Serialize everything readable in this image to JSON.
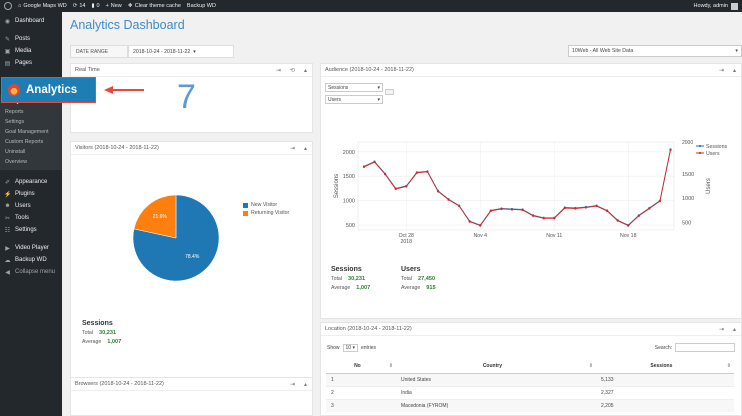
{
  "adminbar": {
    "site_name": "Google Maps WD",
    "updates": "14",
    "comments": "0",
    "new_label": "New",
    "cache_label": "Clear theme cache",
    "backup_label": "Backup WD",
    "howdy": "Howdy, admin"
  },
  "sidebar": {
    "dashboard": "Dashboard",
    "posts": "Posts",
    "media": "Media",
    "pages": "Pages",
    "submenu": [
      "Analytics Dashboard",
      "Reports",
      "Settings",
      "Goal Management",
      "Custom Reports",
      "Uninstall",
      "Overview"
    ],
    "appearance": "Appearance",
    "plugins": "Plugins",
    "users": "Users",
    "tools": "Tools",
    "settings": "Settings",
    "video_player": "Video Player",
    "backup_wd": "Backup WD",
    "collapse": "Collapse menu"
  },
  "badge": {
    "label": "Analytics",
    "accent": "#1e7eb3",
    "outline": "#e84a3a"
  },
  "page": {
    "title": "Analytics Dashboard",
    "date_range_label": "DATE RANGE",
    "date_range_value": "2018-10-24 - 2018-11-22",
    "site_select": "10Web - All Web Site Data"
  },
  "realtime": {
    "title": "Real Time",
    "value": "7"
  },
  "visitors": {
    "title": "Visitors (2018-10-24 - 2018-11-22)",
    "legend": [
      "New Visitor",
      "Returning Visitor"
    ],
    "sessions_title": "Sessions",
    "total_label": "Total",
    "total_value": "30,231",
    "average_label": "Average",
    "average_value": "1,007"
  },
  "browsers": {
    "title": "Browsers (2018-10-24 - 2018-11-22)"
  },
  "audience": {
    "title": "Audience (2018-10-24 - 2018-11-22)",
    "metric1": "Sessions",
    "metric2": "Users",
    "sessions_title": "Sessions",
    "users_title": "Users",
    "total_label": "Total",
    "average_label": "Average",
    "sessions_total": "30,231",
    "sessions_average": "1,007",
    "users_total": "27,450",
    "users_average": "915"
  },
  "location": {
    "title": "Location (2018-10-24 - 2018-11-22)",
    "show_label": "Show",
    "entries_value": "10",
    "entries_label": "entries",
    "search_label": "Search:",
    "columns": [
      "No",
      "Country",
      "Sessions"
    ],
    "rows": [
      [
        "1",
        "United States",
        "5,133"
      ],
      [
        "2",
        "India",
        "2,327"
      ],
      [
        "3",
        "Macedonia (FYROM)",
        "2,205"
      ]
    ]
  },
  "chart_data": [
    {
      "type": "pie",
      "labels": [
        "New Visitor",
        "Returning Visitor"
      ],
      "values": [
        78.4,
        21.6
      ],
      "value_labels": [
        "78.4%",
        "21.6%"
      ],
      "colors": [
        "#1f77b4",
        "#ff7f0e"
      ],
      "legend": "right"
    },
    {
      "type": "line",
      "x_ticks": [
        "Oct 28\n2018",
        "Nov 4",
        "Nov 11",
        "Nov 18"
      ],
      "ylabel": "Sessions",
      "y2label": "Users",
      "ylim": [
        400,
        2200
      ],
      "yticks": [
        500,
        1000,
        1500,
        2000
      ],
      "y2ticks": [
        500,
        1000,
        1500
      ],
      "y2_top_label": "2000",
      "grid": true,
      "legend": "top-right",
      "series": [
        {
          "name": "Sessions",
          "color": "#1f77b4",
          "values": [
            1700,
            1800,
            1550,
            1250,
            1300,
            1580,
            1600,
            1200,
            1030,
            900,
            580,
            500,
            800,
            840,
            830,
            820,
            700,
            650,
            650,
            860,
            850,
            870,
            900,
            800,
            600,
            500,
            700,
            850,
            1000,
            2050
          ]
        },
        {
          "name": "Users",
          "color": "#d62728",
          "values": [
            1690,
            1790,
            1540,
            1240,
            1290,
            1570,
            1590,
            1190,
            1020,
            890,
            570,
            490,
            790,
            830,
            820,
            810,
            690,
            640,
            640,
            850,
            840,
            860,
            890,
            790,
            590,
            490,
            690,
            840,
            990,
            2040
          ]
        }
      ]
    }
  ]
}
